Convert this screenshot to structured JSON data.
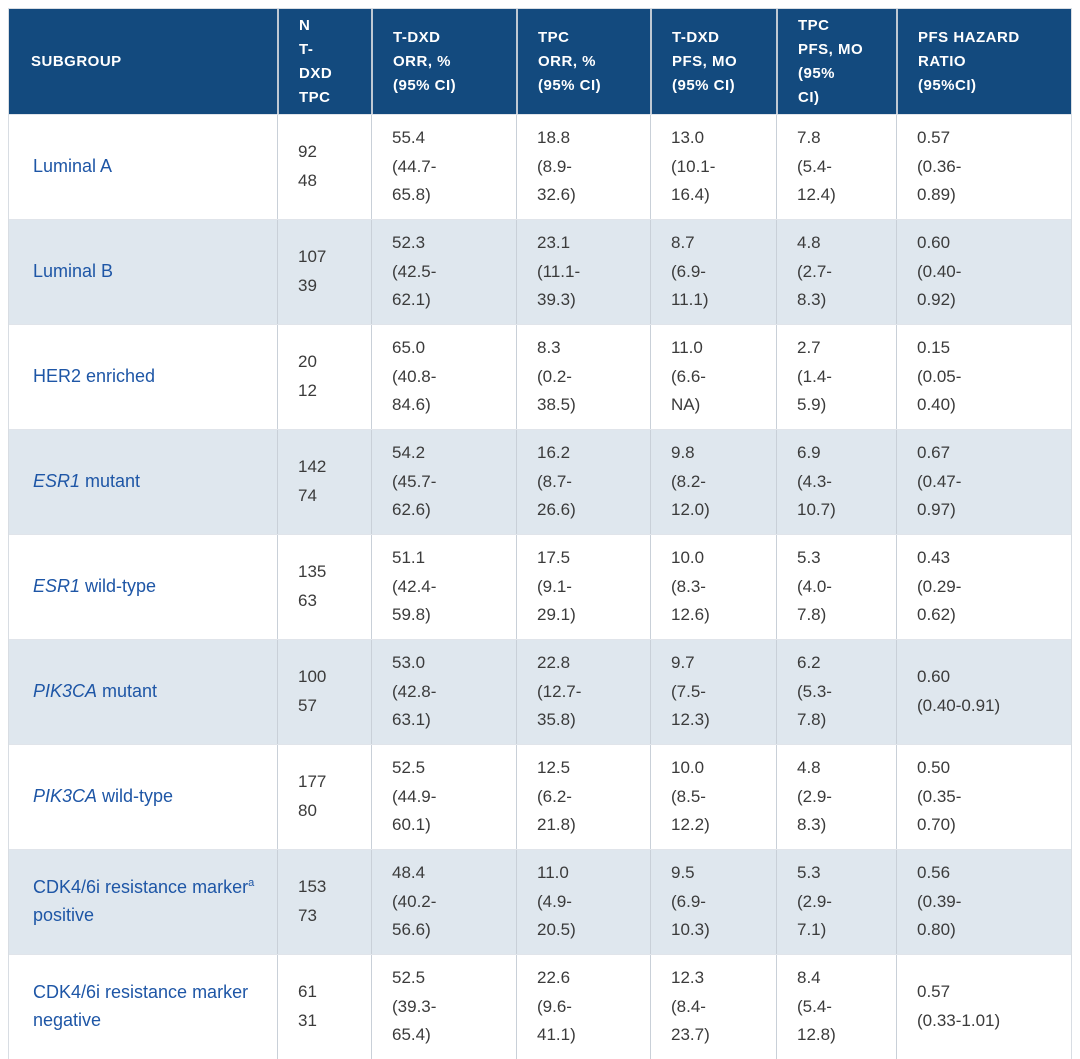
{
  "colors": {
    "header_bg": "#134a7e",
    "header_text": "#ffffff",
    "row_alt_bg": "#dfe7ee",
    "subgroup_text": "#1e56a6",
    "value_text": "#3b3b3b"
  },
  "table": {
    "header": {
      "cells": [
        "SUBGROUP",
        "N\nT-\nDXD\nTPC",
        "T-DXD\nORR, %\n(95% CI)",
        "TPC\nORR, %\n(95% CI)",
        "T-DXD\nPFS, MO\n(95% CI)",
        "TPC\nPFS, MO\n(95%\nCI)",
        "PFS HAZARD\nRATIO\n(95%CI)"
      ]
    },
    "rows": [
      {
        "subgroup": {
          "italic": "",
          "text": "Luminal A",
          "sup": "",
          "text2": ""
        },
        "n": "92\n48",
        "tdxd_orr": "55.4\n(44.7-\n65.8)",
        "tpc_orr": "18.8\n(8.9-\n32.6)",
        "tdxd_pfs": "13.0\n(10.1-\n16.4)",
        "tpc_pfs": "7.8\n(5.4-\n12.4)",
        "hr": "0.57\n(0.36-\n0.89)"
      },
      {
        "subgroup": {
          "italic": "",
          "text": "Luminal B",
          "sup": "",
          "text2": ""
        },
        "n": "107\n39",
        "tdxd_orr": "52.3\n(42.5-\n62.1)",
        "tpc_orr": "23.1\n(11.1-\n39.3)",
        "tdxd_pfs": "8.7\n(6.9-\n11.1)",
        "tpc_pfs": "4.8\n(2.7-\n8.3)",
        "hr": "0.60\n(0.40-\n0.92)"
      },
      {
        "subgroup": {
          "italic": "",
          "text": "HER2 enriched",
          "sup": "",
          "text2": ""
        },
        "n": "20\n12",
        "tdxd_orr": "65.0\n(40.8-\n84.6)",
        "tpc_orr": "8.3\n(0.2-\n38.5)",
        "tdxd_pfs": "11.0\n(6.6-\nNA)",
        "tpc_pfs": "2.7\n(1.4-\n5.9)",
        "hr": "0.15\n(0.05-\n0.40)"
      },
      {
        "subgroup": {
          "italic": "ESR1",
          "text": " mutant",
          "sup": "",
          "text2": ""
        },
        "n": "142\n74",
        "tdxd_orr": "54.2\n(45.7-\n62.6)",
        "tpc_orr": "16.2\n(8.7-\n26.6)",
        "tdxd_pfs": "9.8\n(8.2-\n12.0)",
        "tpc_pfs": "6.9\n(4.3-\n10.7)",
        "hr": "0.67\n(0.47-\n0.97)"
      },
      {
        "subgroup": {
          "italic": "ESR1",
          "text": " wild-type",
          "sup": "",
          "text2": ""
        },
        "n": "135\n63",
        "tdxd_orr": "51.1\n(42.4-\n59.8)",
        "tpc_orr": "17.5\n(9.1-\n29.1)",
        "tdxd_pfs": "10.0\n(8.3-\n12.6)",
        "tpc_pfs": "5.3\n(4.0-\n7.8)",
        "hr": "0.43\n(0.29-\n0.62)"
      },
      {
        "subgroup": {
          "italic": "PIK3CA",
          "text": " mutant",
          "sup": "",
          "text2": ""
        },
        "n": "100\n57",
        "tdxd_orr": "53.0\n(42.8-\n63.1)",
        "tpc_orr": "22.8\n(12.7-\n35.8)",
        "tdxd_pfs": "9.7\n(7.5-\n12.3)",
        "tpc_pfs": "6.2\n(5.3-\n7.8)",
        "hr": "0.60\n(0.40-0.91)"
      },
      {
        "subgroup": {
          "italic": "PIK3CA",
          "text": " wild-type",
          "sup": "",
          "text2": ""
        },
        "n": "177\n80",
        "tdxd_orr": "52.5\n(44.9-\n60.1)",
        "tpc_orr": "12.5\n(6.2-\n21.8)",
        "tdxd_pfs": "10.0\n(8.5-\n12.2)",
        "tpc_pfs": "4.8\n(2.9-\n8.3)",
        "hr": "0.50\n(0.35-\n0.70)"
      },
      {
        "subgroup": {
          "italic": "",
          "text": "CDK4/6i resistance marker",
          "sup": "a",
          "text2": " positive"
        },
        "n": "153\n73",
        "tdxd_orr": "48.4\n(40.2-\n56.6)",
        "tpc_orr": "11.0\n(4.9-\n20.5)",
        "tdxd_pfs": "9.5\n(6.9-\n10.3)",
        "tpc_pfs": "5.3\n(2.9-\n7.1)",
        "hr": "0.56\n(0.39-\n0.80)"
      },
      {
        "subgroup": {
          "italic": "",
          "text": "CDK4/6i resistance marker negative",
          "sup": "",
          "text2": ""
        },
        "n": "61\n31",
        "tdxd_orr": "52.5\n(39.3-\n65.4)",
        "tpc_orr": "22.6\n(9.6-\n41.1)",
        "tdxd_pfs": "12.3\n(8.4-\n23.7)",
        "tpc_pfs": "8.4\n(5.4-\n12.8)",
        "hr": "0.57\n(0.33-1.01)"
      }
    ]
  },
  "chart_data": {
    "type": "table",
    "columns": [
      "Subgroup",
      "N T-DXD",
      "N TPC",
      "T-DXD ORR, % (95% CI)",
      "TPC ORR, % (95% CI)",
      "T-DXD PFS, MO (95% CI)",
      "TPC PFS, MO (95% CI)",
      "PFS hazard ratio (95% CI)"
    ],
    "rows": [
      [
        "Luminal A",
        92,
        48,
        "55.4 (44.7-65.8)",
        "18.8 (8.9-32.6)",
        "13.0 (10.1-16.4)",
        "7.8 (5.4-12.4)",
        "0.57 (0.36-0.89)"
      ],
      [
        "Luminal B",
        107,
        39,
        "52.3 (42.5-62.1)",
        "23.1 (11.1-39.3)",
        "8.7 (6.9-11.1)",
        "4.8 (2.7-8.3)",
        "0.60 (0.40-0.92)"
      ],
      [
        "HER2 enriched",
        20,
        12,
        "65.0 (40.8-84.6)",
        "8.3 (0.2-38.5)",
        "11.0 (6.6-NA)",
        "2.7 (1.4-5.9)",
        "0.15 (0.05-0.40)"
      ],
      [
        "ESR1 mutant",
        142,
        74,
        "54.2 (45.7-62.6)",
        "16.2 (8.7-26.6)",
        "9.8 (8.2-12.0)",
        "6.9 (4.3-10.7)",
        "0.67 (0.47-0.97)"
      ],
      [
        "ESR1 wild-type",
        135,
        63,
        "51.1 (42.4-59.8)",
        "17.5 (9.1-29.1)",
        "10.0 (8.3-12.6)",
        "5.3 (4.0-7.8)",
        "0.43 (0.29-0.62)"
      ],
      [
        "PIK3CA mutant",
        100,
        57,
        "53.0 (42.8-63.1)",
        "22.8 (12.7-35.8)",
        "9.7 (7.5-12.3)",
        "6.2 (5.3-7.8)",
        "0.60 (0.40-0.91)"
      ],
      [
        "PIK3CA wild-type",
        177,
        80,
        "52.5 (44.9-60.1)",
        "12.5 (6.2-21.8)",
        "10.0 (8.5-12.2)",
        "4.8 (2.9-8.3)",
        "0.50 (0.35-0.70)"
      ],
      [
        "CDK4/6i resistance marker(a) positive",
        153,
        73,
        "48.4 (40.2-56.6)",
        "11.0 (4.9-20.5)",
        "9.5 (6.9-10.3)",
        "5.3 (2.9-7.1)",
        "0.56 (0.39-0.80)"
      ],
      [
        "CDK4/6i resistance marker negative",
        61,
        31,
        "52.5 (39.3-65.4)",
        "22.6 (9.6-41.1)",
        "12.3 (8.4-23.7)",
        "8.4 (5.4-12.8)",
        "0.57 (0.33-1.01)"
      ]
    ]
  }
}
